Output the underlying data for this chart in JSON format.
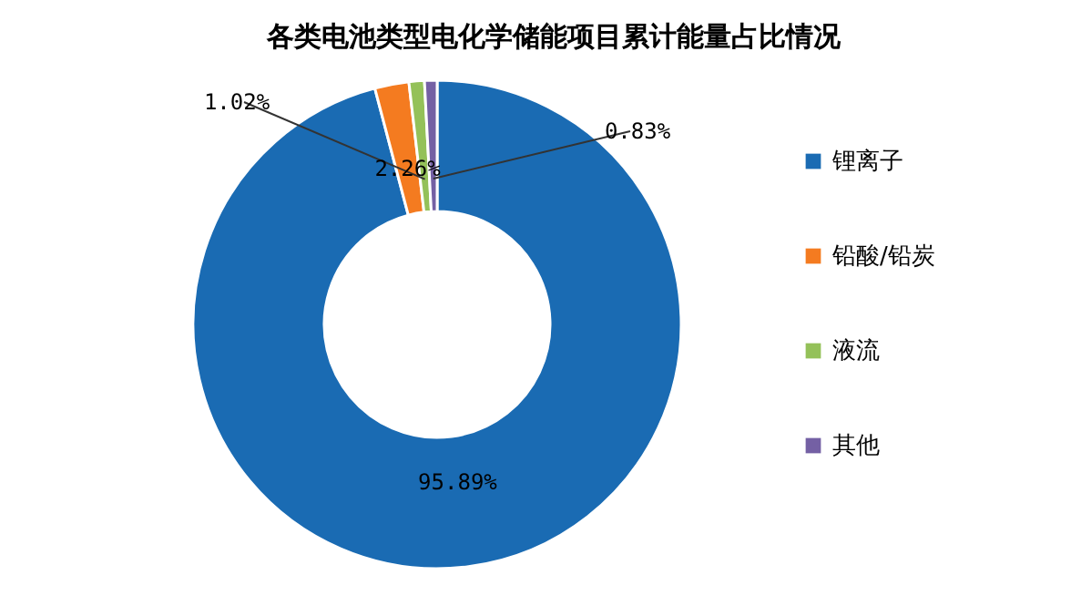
{
  "chart_data": {
    "type": "donut",
    "title": "各类电池类型电化学储能项目累计能量占比情况",
    "categories": [
      "锂离子",
      "铅酸/铅炭",
      "液流",
      "其他"
    ],
    "values": [
      95.89,
      2.26,
      1.02,
      0.83
    ],
    "colors": [
      "#1a6bb3",
      "#f47b20",
      "#94c159",
      "#7460a4"
    ],
    "value_labels": [
      "95.89%",
      "2.26%",
      "1.02%",
      "0.83%"
    ],
    "legend": "right"
  }
}
